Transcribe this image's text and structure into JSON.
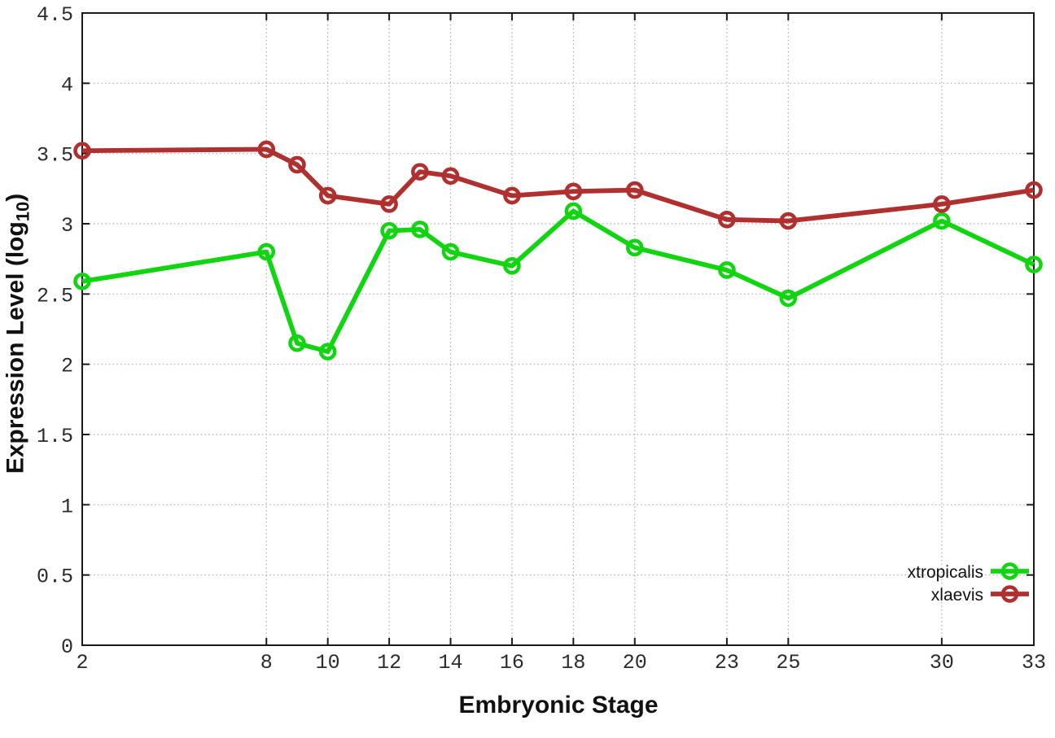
{
  "axes": {
    "x_title": "Embryonic Stage",
    "y_title_pre": "Expression Level (log",
    "y_title_sub": "10",
    "y_title_post": ")"
  },
  "style": {
    "background": "#ffffff",
    "axis_color": "#1a1a1a",
    "grid_color": "#ababab",
    "tick_label_color": "#2b2b2b",
    "legend_text_color": "#111111",
    "xtropicalis_color": "#12d512",
    "xlaevis_color": "#b03030"
  },
  "chart_data": {
    "type": "line",
    "title": "",
    "xlabel": "Embryonic Stage",
    "ylabel": "Expression Level (log10)",
    "xlim": [
      2,
      33
    ],
    "ylim": [
      0,
      4.5
    ],
    "xticks": [
      2,
      8,
      10,
      12,
      14,
      16,
      18,
      20,
      23,
      25,
      30,
      33
    ],
    "yticks": [
      0,
      0.5,
      1,
      1.5,
      2,
      2.5,
      3,
      3.5,
      4,
      4.5
    ],
    "grid": true,
    "grid_style": "dotted",
    "legend_position": "bottom-right",
    "marker": "open-circle",
    "x": [
      2,
      8,
      9,
      10,
      12,
      13,
      14,
      16,
      18,
      20,
      23,
      25,
      30,
      33
    ],
    "series": [
      {
        "name": "xtropicalis",
        "color": "#12d512",
        "values": [
          2.59,
          2.8,
          2.15,
          2.09,
          2.95,
          2.96,
          2.8,
          2.7,
          3.09,
          2.83,
          2.67,
          2.47,
          3.02,
          2.71
        ]
      },
      {
        "name": "xlaevis",
        "color": "#b03030",
        "values": [
          3.52,
          3.53,
          3.42,
          3.2,
          3.14,
          3.37,
          3.34,
          3.2,
          3.23,
          3.24,
          3.03,
          3.02,
          3.14,
          3.24
        ]
      }
    ]
  }
}
